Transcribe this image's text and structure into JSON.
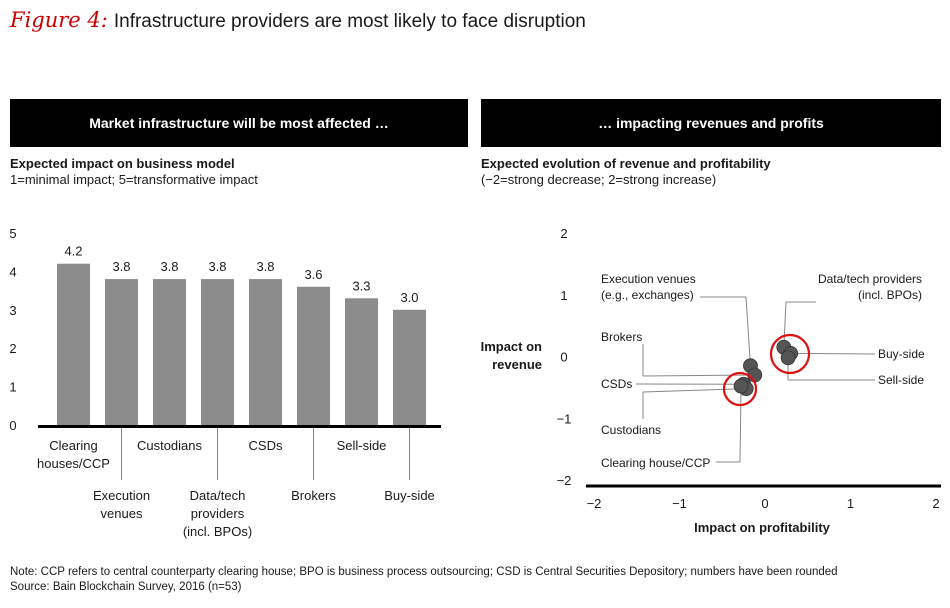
{
  "figure": {
    "label": "Figure 4:",
    "title": "Infrastructure providers are most likely to face disruption"
  },
  "left_panel": {
    "banner": "Market infrastructure will be most affected …",
    "subtitle": "Expected impact on business model",
    "scale_note": "1=minimal impact; 5=transformative impact"
  },
  "right_panel": {
    "banner": "… impacting revenues and profits",
    "subtitle": "Expected evolution of revenue and profitability",
    "scale_note": "(−2=strong decrease; 2=strong increase)"
  },
  "colors": {
    "bar": "#8c8c8c",
    "point": "#555555",
    "highlight": "#dd1111",
    "banner": "#000000"
  },
  "chart_data": [
    {
      "type": "bar",
      "categories": [
        "Clearing houses/CCP",
        "Execution venues",
        "Custodians",
        "Data/tech providers (incl. BPOs)",
        "CSDs",
        "Brokers",
        "Sell-side",
        "Buy-side"
      ],
      "category_labels": [
        [
          "Clearing",
          "houses/CCP"
        ],
        [
          "Execution",
          "venues"
        ],
        [
          "Custodians"
        ],
        [
          "Data/tech",
          "providers",
          "(incl. BPOs)"
        ],
        [
          "CSDs"
        ],
        [
          "Brokers"
        ],
        [
          "Sell-side"
        ],
        [
          "Buy-side"
        ]
      ],
      "values": [
        4.2,
        3.8,
        3.8,
        3.8,
        3.8,
        3.6,
        3.3,
        3.0
      ],
      "value_labels": [
        "4.2",
        "3.8",
        "3.8",
        "3.8",
        "3.8",
        "3.6",
        "3.3",
        "3.0"
      ],
      "ylim": [
        0,
        5
      ],
      "yticks": [
        "0",
        "1",
        "2",
        "3",
        "4",
        "5"
      ]
    },
    {
      "type": "scatter",
      "xlabel": "Impact on profitability",
      "ylabel": [
        "Impact on",
        "revenue"
      ],
      "xlim": [
        -2,
        2
      ],
      "ylim": [
        -2,
        2
      ],
      "xticks": [
        "−2",
        "−1",
        "0",
        "1",
        "2"
      ],
      "yticks": [
        "2",
        "1",
        "0",
        "−1",
        "−2"
      ],
      "points": [
        {
          "name": "Execution venues (e.g., exchanges)",
          "label": [
            "Execution venues",
            "(e.g., exchanges)"
          ],
          "x": -0.17,
          "y": -0.15
        },
        {
          "name": "Brokers",
          "label": [
            "Brokers"
          ],
          "x": -0.12,
          "y": -0.3
        },
        {
          "name": "CSDs",
          "label": [
            "CSDs"
          ],
          "x": -0.25,
          "y": -0.45
        },
        {
          "name": "Custodians",
          "label": [
            "Custodians"
          ],
          "x": -0.22,
          "y": -0.52
        },
        {
          "name": "Clearing house/CCP",
          "label": [
            "Clearing house/CCP"
          ],
          "x": -0.28,
          "y": -0.48
        },
        {
          "name": "Data/tech providers (incl. BPOs)",
          "label": [
            "Data/tech providers",
            "(incl. BPOs)"
          ],
          "x": 0.22,
          "y": 0.15
        },
        {
          "name": "Buy-side",
          "label": [
            "Buy-side"
          ],
          "x": 0.3,
          "y": 0.05
        },
        {
          "name": "Sell-side",
          "label": [
            "Sell-side"
          ],
          "x": 0.27,
          "y": -0.02
        }
      ]
    }
  ],
  "note": "Note: CCP refers to central counterparty clearing house; BPO is business process outsourcing; CSD is Central Securities Depository; numbers have been rounded",
  "source": "Source: Bain Blockchain Survey, 2016 (n=53)"
}
